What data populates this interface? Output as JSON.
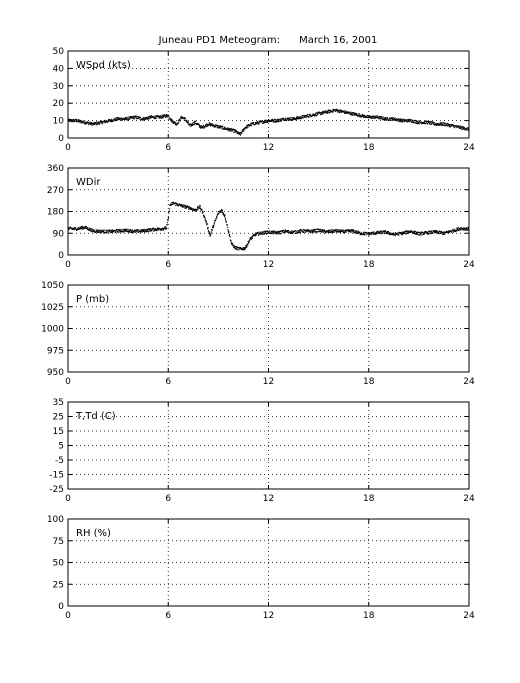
{
  "title": "Juneau PD1 Meteogram:      March 16, 2001",
  "chart_data": [
    {
      "type": "scatter",
      "panel_label": "WSpd (kts)",
      "xlim": [
        0,
        24
      ],
      "ylim": [
        0,
        50
      ],
      "xticks": [
        0,
        6,
        12,
        18,
        24
      ],
      "yticks": [
        0,
        10,
        20,
        30,
        40,
        50
      ],
      "grid": true,
      "series": [
        {
          "x": [
            0,
            0.5,
            1,
            1.5,
            2,
            2.5,
            3,
            3.5,
            4,
            4.5,
            5,
            5.5,
            6,
            6.2,
            6.5,
            6.8,
            7,
            7.3,
            7.6,
            8,
            8.4,
            8.8,
            9.2,
            9.6,
            10,
            10.3,
            10.6,
            11,
            11.5,
            12,
            12.5,
            13,
            13.5,
            14,
            14.5,
            15,
            15.5,
            16,
            16.5,
            17,
            17.5,
            18,
            18.5,
            19,
            19.5,
            20,
            20.5,
            21,
            21.5,
            22,
            22.5,
            23,
            23.5,
            24
          ],
          "y": [
            10,
            10,
            9,
            8,
            9,
            10,
            11,
            11,
            12,
            11,
            12,
            12,
            13,
            10,
            8,
            12,
            11,
            7,
            9,
            6,
            8,
            7,
            6,
            5,
            4,
            2,
            6,
            8,
            9,
            10,
            10,
            11,
            11,
            12,
            13,
            14,
            15,
            16,
            15,
            14,
            13,
            12,
            12,
            11,
            11,
            10,
            10,
            9,
            9,
            8,
            8,
            7,
            6,
            5
          ]
        }
      ]
    },
    {
      "type": "scatter",
      "panel_label": "WDir",
      "xlim": [
        0,
        24
      ],
      "ylim": [
        0,
        360
      ],
      "xticks": [
        0,
        6,
        12,
        18,
        24
      ],
      "yticks": [
        0,
        90,
        180,
        270,
        360
      ],
      "grid": true,
      "series": [
        {
          "x": [
            0,
            0.5,
            1,
            1.5,
            2,
            2.5,
            3,
            3.5,
            4,
            4.5,
            5,
            5.5,
            5.9,
            6,
            6.1,
            6.3,
            6.6,
            7,
            7.3,
            7.6,
            7.9,
            8.1,
            8.3,
            8.5,
            8.7,
            9,
            9.2,
            9.4,
            9.6,
            9.8,
            10,
            10.3,
            10.6,
            10.9,
            11.2,
            11.5,
            12,
            12.5,
            13,
            13.5,
            14,
            14.5,
            15,
            15.5,
            16,
            16.5,
            17,
            17.5,
            18,
            18.5,
            19,
            19.5,
            20,
            20.5,
            21,
            21.5,
            22,
            22.5,
            23,
            23.5,
            24
          ],
          "y": [
            110,
            108,
            115,
            100,
            98,
            97,
            100,
            102,
            98,
            100,
            105,
            108,
            112,
            150,
            205,
            215,
            208,
            200,
            195,
            185,
            200,
            170,
            130,
            80,
            120,
            175,
            185,
            160,
            100,
            45,
            30,
            25,
            28,
            65,
            85,
            90,
            95,
            92,
            98,
            94,
            100,
            98,
            102,
            96,
            100,
            97,
            100,
            90,
            88,
            92,
            95,
            85,
            90,
            98,
            88,
            92,
            96,
            90,
            100,
            110,
            108
          ]
        }
      ]
    },
    {
      "type": "scatter",
      "panel_label": "P (mb)",
      "xlim": [
        0,
        24
      ],
      "ylim": [
        950,
        1050
      ],
      "xticks": [
        0,
        6,
        12,
        18,
        24
      ],
      "yticks": [
        950,
        975,
        1000,
        1025,
        1050
      ],
      "grid": true,
      "series": []
    },
    {
      "type": "scatter",
      "panel_label": "T,Td (C)",
      "xlim": [
        0,
        24
      ],
      "ylim": [
        -25,
        35
      ],
      "xticks": [
        0,
        6,
        12,
        18,
        24
      ],
      "yticks": [
        -25,
        -15,
        -5,
        5,
        15,
        25,
        35
      ],
      "grid": true,
      "series": []
    },
    {
      "type": "scatter",
      "panel_label": "RH (%)",
      "xlim": [
        0,
        24
      ],
      "ylim": [
        0,
        100
      ],
      "xticks": [
        0,
        6,
        12,
        18,
        24
      ],
      "yticks": [
        0,
        25,
        50,
        75,
        100
      ],
      "grid": true,
      "series": []
    }
  ]
}
